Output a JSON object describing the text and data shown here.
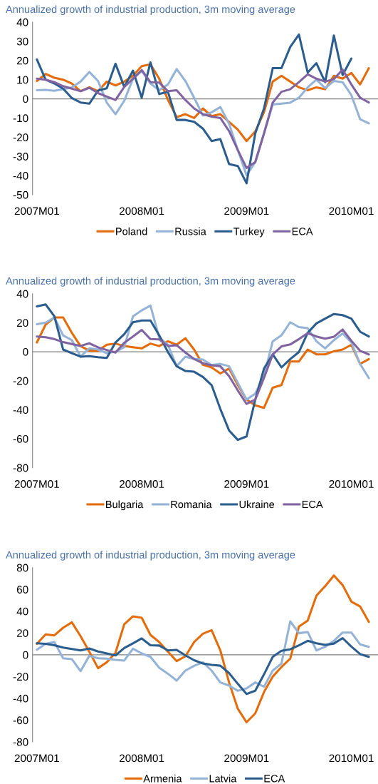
{
  "chart_data": [
    {
      "type": "line",
      "title": "Annualized growth of industrial production, 3m moving average",
      "categories": [
        "2007M01",
        null,
        null,
        null,
        null,
        null,
        null,
        null,
        null,
        null,
        null,
        null,
        "2008M01",
        null,
        null,
        null,
        null,
        null,
        null,
        null,
        null,
        null,
        null,
        null,
        "2009M01",
        null,
        null,
        null,
        null,
        null,
        null,
        null,
        null,
        null,
        null,
        null,
        "2010M01",
        null,
        null
      ],
      "ylim": [
        -50,
        40
      ],
      "yticks": [
        -50,
        -40,
        -30,
        -20,
        -10,
        0,
        10,
        20,
        30,
        40
      ],
      "grid": false,
      "legend": "bottom",
      "ref_lines": [
        {
          "axis": "y",
          "value": 0,
          "color": "#808080"
        }
      ],
      "series": [
        {
          "name": "Poland",
          "color": "#e46c0a",
          "values": [
            9.3,
            13,
            11,
            10,
            8,
            4,
            6,
            4,
            9,
            7,
            9,
            12,
            17,
            18,
            10.5,
            -0.5,
            -9.5,
            -8,
            -10,
            -5,
            -9,
            -8,
            -12,
            -16,
            -22,
            -17,
            -7,
            9,
            12,
            9,
            6,
            4.5,
            6,
            5,
            12,
            10.5,
            13.5,
            7.5,
            16
          ]
        },
        {
          "name": "Russia",
          "color": "#95b3d7",
          "values": [
            4.5,
            4.7,
            4.2,
            5,
            6,
            9,
            14,
            9.3,
            -2,
            -8,
            -1,
            10.5,
            14.5,
            8,
            4.5,
            7.5,
            15.5,
            9.3,
            0.6,
            -8.7,
            -7,
            -4.3,
            -13,
            -26.7,
            -39.8,
            -33,
            -18,
            -2.9,
            -2.5,
            -2,
            0.6,
            6,
            10,
            5.6,
            9.3,
            8.7,
            1.9,
            -10.6,
            -12.8
          ]
        },
        {
          "name": "Turkey",
          "color": "#2c5d8f",
          "values": [
            20.5,
            10,
            8,
            5.3,
            0.4,
            -1.9,
            -2.5,
            4.3,
            5.5,
            18.3,
            6.2,
            14.7,
            0.6,
            19,
            2.5,
            3.7,
            -11,
            -11,
            -12,
            -15.5,
            -22,
            -21,
            -34,
            -35,
            -44,
            -18,
            -5,
            16,
            16,
            27,
            33.5,
            13.7,
            18.6,
            8.7,
            33,
            12.4,
            21,
            null,
            null
          ]
        },
        {
          "name": "ECA",
          "color": "#8064a2",
          "values": [
            10.5,
            10,
            8.7,
            6.6,
            5.3,
            4,
            5.8,
            3,
            1.2,
            -0.6,
            6.2,
            10.5,
            15,
            8.7,
            8.5,
            4,
            4.5,
            -0.6,
            -5,
            -8,
            -9.3,
            -10,
            -16.8,
            -26.7,
            -36,
            -33,
            -18,
            -1.9,
            3.7,
            5,
            8.7,
            12.8,
            10.5,
            9,
            10.3,
            15.3,
            7.5,
            0.6,
            -1.9
          ]
        }
      ]
    },
    {
      "type": "line",
      "title": "Annualized growth of industrial production, 3m moving average",
      "categories": [
        "2007M01",
        null,
        null,
        null,
        null,
        null,
        null,
        null,
        null,
        null,
        null,
        null,
        "2008M01",
        null,
        null,
        null,
        null,
        null,
        null,
        null,
        null,
        null,
        null,
        null,
        "2009M01",
        null,
        null,
        null,
        null,
        null,
        null,
        null,
        null,
        null,
        null,
        null,
        "2010M01",
        null,
        null
      ],
      "ylim": [
        -80,
        40
      ],
      "yticks": [
        -80,
        -60,
        -40,
        -20,
        0,
        20,
        40
      ],
      "grid": false,
      "legend": "bottom",
      "ref_lines": [
        {
          "axis": "y",
          "value": 0,
          "color": "#808080"
        }
      ],
      "series": [
        {
          "name": "Bulgaria",
          "color": "#e46c0a",
          "values": [
            6.4,
            18.7,
            23.6,
            23.6,
            13,
            3.9,
            0.7,
            0.7,
            4.8,
            5.6,
            3.9,
            3.1,
            2.3,
            5.6,
            3.9,
            7.2,
            4.8,
            9.3,
            1.5,
            -9,
            -10.8,
            -15,
            -11.6,
            -23,
            -33,
            -37,
            -38.7,
            -24.8,
            -23,
            -6.7,
            -6.7,
            1.5,
            -1.8,
            -1.8,
            0.3,
            1.5,
            4.8,
            -8.4,
            -5.1
          ]
        },
        {
          "name": "Romania",
          "color": "#95b3d7",
          "values": [
            19,
            20,
            23.6,
            11.3,
            8,
            -3.4,
            2.3,
            1.5,
            -1,
            0,
            3.1,
            24.4,
            28.5,
            31.8,
            9.7,
            4.8,
            -10,
            -3.4,
            -5,
            -5.4,
            -9.2,
            -8.4,
            -10,
            -21.5,
            -33,
            -28.9,
            -16.6,
            7.2,
            11.3,
            20.3,
            17,
            16.2,
            7.2,
            2.3,
            8,
            12.6,
            6.4,
            -8.4,
            -18.2
          ]
        },
        {
          "name": "Ukraine",
          "color": "#2c5d8f",
          "values": [
            31.3,
            32.6,
            24.4,
            1.5,
            -1,
            -3.4,
            -3.1,
            -3.8,
            -4.3,
            6.4,
            12.1,
            20.3,
            21.5,
            21.5,
            11.3,
            -0.2,
            -10,
            -13.3,
            -13.8,
            -17.4,
            -23,
            -39.5,
            -54.3,
            -60.8,
            -58.4,
            -33,
            -11.6,
            -1.8,
            -10.8,
            -5.1,
            -0.2,
            13,
            19.5,
            22.8,
            26,
            25.2,
            22.8,
            13.8,
            10.5
          ]
        },
        {
          "name": "ECA",
          "color": "#8064a2",
          "values": [
            10.5,
            10,
            8.7,
            6.6,
            5.3,
            4,
            5.8,
            3,
            1.2,
            -0.6,
            6.2,
            10.5,
            15,
            8.7,
            8.5,
            4,
            4.5,
            -0.6,
            -5,
            -8,
            -9.3,
            -10,
            -16.8,
            -26.7,
            -36,
            -33,
            -18,
            -1.9,
            3.7,
            5,
            8.7,
            12.8,
            10.5,
            9,
            10.3,
            15.3,
            7.5,
            0.6,
            -1.9
          ]
        }
      ]
    },
    {
      "type": "line",
      "title": "Annualized growth of industrial production, 3m moving average",
      "categories": [
        "2007M01",
        null,
        null,
        null,
        null,
        null,
        null,
        null,
        null,
        null,
        null,
        null,
        "2008M01",
        null,
        null,
        null,
        null,
        null,
        null,
        null,
        null,
        null,
        null,
        null,
        "2009M01",
        null,
        null,
        null,
        null,
        null,
        null,
        null,
        null,
        null,
        null,
        null,
        "2010M01",
        null,
        null
      ],
      "ylim": [
        -80,
        80
      ],
      "yticks": [
        -80,
        -60,
        -40,
        -20,
        0,
        20,
        40,
        60,
        80
      ],
      "grid": false,
      "legend": "bottom",
      "ref_lines": [
        {
          "axis": "y",
          "value": 0,
          "color": "#808080"
        }
      ],
      "series": [
        {
          "name": "Armenia",
          "color": "#e46c0a",
          "values": [
            10,
            18.7,
            17.8,
            24.8,
            29.8,
            17.1,
            2.9,
            -12.3,
            -6.9,
            1.9,
            28,
            35.3,
            34,
            18.2,
            11.7,
            2.9,
            -5.8,
            -1.4,
            11.7,
            19.3,
            22.6,
            4,
            -25.4,
            -49.5,
            -62,
            -53.8,
            -34.2,
            -20,
            -11.2,
            -3.6,
            25.9,
            31.3,
            54.3,
            63,
            72.8,
            64,
            48.8,
            44.4,
            30.2
          ]
        },
        {
          "name": "Latvia",
          "color": "#95b3d7",
          "values": [
            4.7,
            10,
            11.7,
            -3.2,
            -4,
            -15,
            -1,
            -3.2,
            -3.6,
            -4.7,
            -5.3,
            5.6,
            1.2,
            -1.9,
            -11.9,
            -17.4,
            -23.7,
            -14.5,
            -10.2,
            -6.9,
            -14.5,
            -25.4,
            -28.3,
            -33.1,
            -30.9,
            -25.4,
            -29.4,
            -14.5,
            -8,
            30.7,
            19.8,
            20.9,
            4,
            7.3,
            12.8,
            20.4,
            20.4,
            9.5,
            7.3
          ]
        },
        {
          "name": "ECA",
          "color": "#2c5d8f",
          "values": [
            10.5,
            10,
            8.7,
            6.6,
            5.3,
            4,
            5.8,
            3,
            1.2,
            -0.6,
            6.2,
            10.5,
            15,
            8.7,
            8.5,
            4,
            4.5,
            -0.6,
            -5,
            -8,
            -9.3,
            -10,
            -16.8,
            -26.7,
            -36,
            -33,
            -18,
            -1.9,
            3.7,
            5,
            8.7,
            12.8,
            10.5,
            9,
            10.3,
            15.3,
            7.5,
            0.6,
            -1.9
          ]
        }
      ]
    }
  ]
}
